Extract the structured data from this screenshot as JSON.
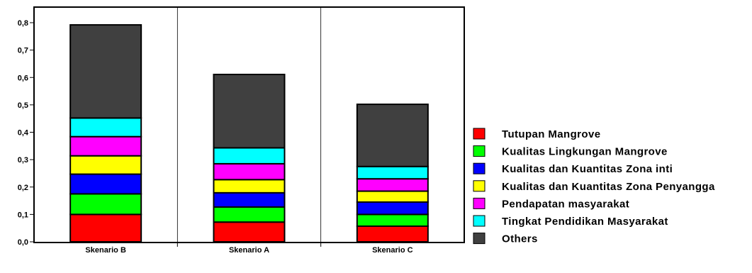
{
  "chart_data": {
    "type": "bar",
    "stacked": true,
    "categories": [
      "Skenario B",
      "Skenario A",
      "Skenario C"
    ],
    "ylim": [
      0,
      0.8
    ],
    "yticks": [
      "0,0",
      "0,1",
      "0,2",
      "0,3",
      "0,4",
      "0,5",
      "0,6",
      "0,7",
      "0,8"
    ],
    "grid": {
      "vertical": true,
      "horizontal": false
    },
    "legend_position": "right",
    "series": [
      {
        "name": "Tutupan Mangrove",
        "color": "#ff0000",
        "values": [
          0.1,
          0.072,
          0.057
        ]
      },
      {
        "name": "Kualitas Lingkungan Mangrove",
        "color": "#00ff00",
        "values": [
          0.075,
          0.055,
          0.043
        ]
      },
      {
        "name": "Kualitas dan Kuantitas Zona inti",
        "color": "#0000ff",
        "values": [
          0.072,
          0.052,
          0.045
        ]
      },
      {
        "name": "Kualitas dan Kuantitas Zona Penyangga",
        "color": "#ffff00",
        "values": [
          0.067,
          0.048,
          0.04
        ]
      },
      {
        "name": "Pendapatan masyarakat",
        "color": "#ff00ff",
        "values": [
          0.07,
          0.058,
          0.045
        ]
      },
      {
        "name": "Tingkat Pendidikan Masyarakat",
        "color": "#00ffff",
        "values": [
          0.068,
          0.058,
          0.045
        ]
      },
      {
        "name": "Others",
        "color": "#404040",
        "values": [
          0.34,
          0.268,
          0.227
        ]
      }
    ]
  }
}
